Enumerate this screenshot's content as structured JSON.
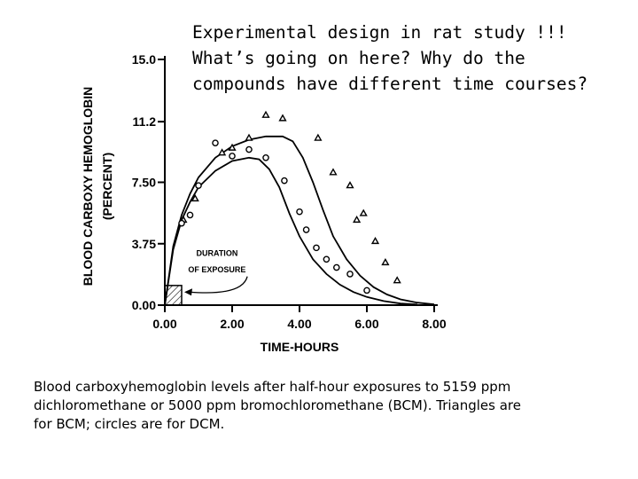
{
  "heading": {
    "line1": "Experimental design in rat study !!!",
    "line2": "What’s going on here? Why do the",
    "line3": "compounds have different time courses?"
  },
  "caption": {
    "line1": "Blood carboxyhemoglobin levels after half-hour exposures to 5159 ppm",
    "line2": "dichloromethane or 5000 ppm bromochloromethane (BCM). Triangles are",
    "line3": "for BCM; circles are for DCM."
  },
  "chart_data": {
    "type": "scatter",
    "xlabel": "TIME-HOURS",
    "ylabel_line1": "BLOOD CARBOXY HEMOGLOBIN",
    "ylabel_line2": "(PERCENT)",
    "xlim": [
      0,
      8
    ],
    "ylim": [
      0,
      15
    ],
    "x_ticks": [
      {
        "value": 0,
        "label": "0.00"
      },
      {
        "value": 2,
        "label": "2.00"
      },
      {
        "value": 4,
        "label": "4.00"
      },
      {
        "value": 6,
        "label": "6.00"
      },
      {
        "value": 8,
        "label": "8.00"
      }
    ],
    "y_ticks": [
      {
        "value": 0,
        "label": "0.00"
      },
      {
        "value": 3.75,
        "label": "3.75"
      },
      {
        "value": 7.5,
        "label": "7.50"
      },
      {
        "value": 11.2,
        "label": "11.2"
      },
      {
        "value": 15,
        "label": "15.0"
      }
    ],
    "exposure_annotation": {
      "line1": "DURATION",
      "line2": "OF EXPOSURE",
      "x_start": 0,
      "x_end": 0.5,
      "y_top": 1.2
    },
    "series": [
      {
        "name": "BCM",
        "marker": "triangle",
        "points": [
          {
            "x": 0.55,
            "y": 5.2
          },
          {
            "x": 0.9,
            "y": 6.5
          },
          {
            "x": 1.7,
            "y": 9.3
          },
          {
            "x": 2.0,
            "y": 9.6
          },
          {
            "x": 2.5,
            "y": 10.2
          },
          {
            "x": 3.0,
            "y": 11.6
          },
          {
            "x": 3.5,
            "y": 11.4
          },
          {
            "x": 4.55,
            "y": 10.2
          },
          {
            "x": 5.0,
            "y": 8.1
          },
          {
            "x": 5.5,
            "y": 7.3
          },
          {
            "x": 5.7,
            "y": 5.2
          },
          {
            "x": 5.9,
            "y": 5.6
          },
          {
            "x": 6.25,
            "y": 3.9
          },
          {
            "x": 6.55,
            "y": 2.6
          },
          {
            "x": 6.9,
            "y": 1.5
          }
        ],
        "fit_curve": [
          {
            "x": 0,
            "y": 0
          },
          {
            "x": 0.25,
            "y": 3.6
          },
          {
            "x": 0.5,
            "y": 5.5
          },
          {
            "x": 0.75,
            "y": 6.8
          },
          {
            "x": 1.0,
            "y": 7.8
          },
          {
            "x": 1.5,
            "y": 9.0
          },
          {
            "x": 2.0,
            "y": 9.7
          },
          {
            "x": 2.5,
            "y": 10.1
          },
          {
            "x": 3.0,
            "y": 10.3
          },
          {
            "x": 3.5,
            "y": 10.3
          },
          {
            "x": 3.8,
            "y": 10.0
          },
          {
            "x": 4.1,
            "y": 9.0
          },
          {
            "x": 4.4,
            "y": 7.5
          },
          {
            "x": 4.7,
            "y": 5.8
          },
          {
            "x": 5.0,
            "y": 4.2
          },
          {
            "x": 5.4,
            "y": 2.8
          },
          {
            "x": 5.8,
            "y": 1.8
          },
          {
            "x": 6.2,
            "y": 1.1
          },
          {
            "x": 6.6,
            "y": 0.65
          },
          {
            "x": 7.0,
            "y": 0.35
          },
          {
            "x": 7.5,
            "y": 0.15
          },
          {
            "x": 8.0,
            "y": 0.05
          }
        ]
      },
      {
        "name": "DCM",
        "marker": "circle",
        "points": [
          {
            "x": 0.5,
            "y": 5.0
          },
          {
            "x": 0.75,
            "y": 5.5
          },
          {
            "x": 1.0,
            "y": 7.3
          },
          {
            "x": 1.5,
            "y": 9.9
          },
          {
            "x": 2.0,
            "y": 9.1
          },
          {
            "x": 2.5,
            "y": 9.5
          },
          {
            "x": 3.0,
            "y": 9.0
          },
          {
            "x": 3.55,
            "y": 7.6
          },
          {
            "x": 4.0,
            "y": 5.7
          },
          {
            "x": 4.2,
            "y": 4.6
          },
          {
            "x": 4.5,
            "y": 3.5
          },
          {
            "x": 4.8,
            "y": 2.8
          },
          {
            "x": 5.1,
            "y": 2.3
          },
          {
            "x": 5.5,
            "y": 1.9
          },
          {
            "x": 6.0,
            "y": 0.9
          }
        ],
        "fit_curve": [
          {
            "x": 0,
            "y": 0
          },
          {
            "x": 0.25,
            "y": 3.4
          },
          {
            "x": 0.5,
            "y": 5.2
          },
          {
            "x": 0.75,
            "y": 6.3
          },
          {
            "x": 1.0,
            "y": 7.2
          },
          {
            "x": 1.5,
            "y": 8.2
          },
          {
            "x": 2.0,
            "y": 8.8
          },
          {
            "x": 2.5,
            "y": 9.0
          },
          {
            "x": 2.8,
            "y": 8.9
          },
          {
            "x": 3.1,
            "y": 8.3
          },
          {
            "x": 3.4,
            "y": 7.2
          },
          {
            "x": 3.7,
            "y": 5.6
          },
          {
            "x": 4.0,
            "y": 4.2
          },
          {
            "x": 4.4,
            "y": 2.8
          },
          {
            "x": 4.8,
            "y": 1.9
          },
          {
            "x": 5.2,
            "y": 1.25
          },
          {
            "x": 5.6,
            "y": 0.8
          },
          {
            "x": 6.0,
            "y": 0.5
          },
          {
            "x": 6.5,
            "y": 0.25
          },
          {
            "x": 7.0,
            "y": 0.1
          },
          {
            "x": 7.5,
            "y": 0.04
          }
        ]
      }
    ]
  }
}
